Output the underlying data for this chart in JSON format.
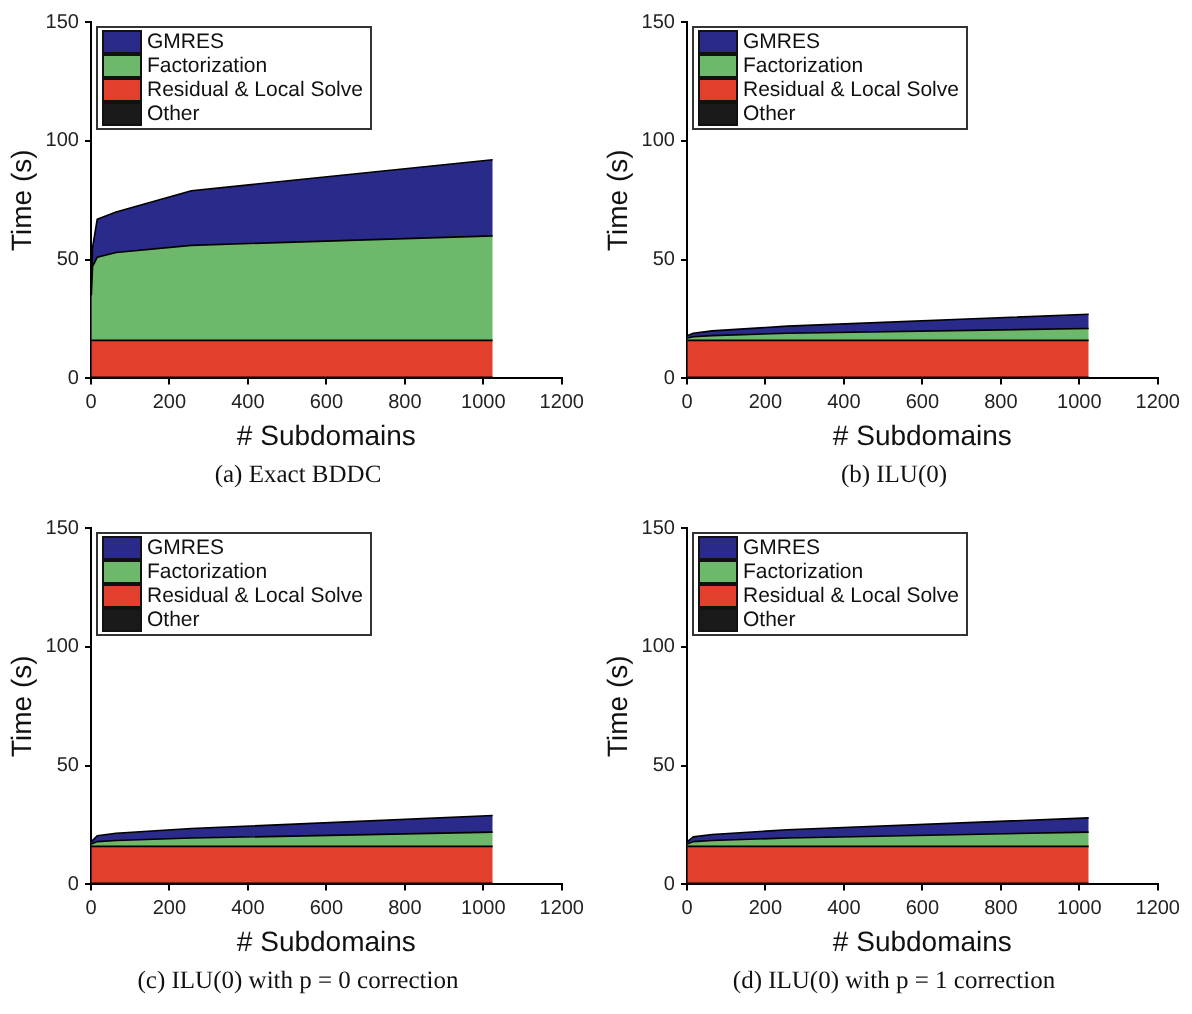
{
  "chart_data": [
    {
      "type": "area",
      "title": "(a) Exact BDDC",
      "xlabel": "# Subdomains",
      "ylabel": "Time (s)",
      "x": [
        1,
        4,
        16,
        64,
        256,
        1024
      ],
      "stacked": true,
      "xlim": [
        0,
        1200
      ],
      "xticks": [
        0,
        200,
        400,
        600,
        800,
        1000,
        1200
      ],
      "ylim": [
        0,
        150
      ],
      "yticks": [
        0,
        50,
        100,
        150
      ],
      "grid": false,
      "legend": "top left",
      "marker": "none",
      "series": [
        {
          "name": "Other",
          "color": "#1a1a1a",
          "values": [
            0.5,
            0.5,
            0.5,
            0.5,
            0.5,
            0.5
          ]
        },
        {
          "name": "Residual & Local Solve",
          "color": "#e0402c",
          "values": [
            15.5,
            15.5,
            15.5,
            15.5,
            15.5,
            15.5
          ]
        },
        {
          "name": "Factorization",
          "color": "#6db86a",
          "values": [
            19,
            31,
            35,
            37,
            40,
            44
          ]
        },
        {
          "name": "GMRES",
          "color": "#2a2a8a",
          "values": [
            1,
            8,
            16,
            17,
            23,
            32
          ]
        }
      ]
    },
    {
      "type": "area",
      "title": "(b) ILU(0)",
      "xlabel": "# Subdomains",
      "ylabel": "Time (s)",
      "x": [
        1,
        16,
        64,
        256,
        1024
      ],
      "stacked": true,
      "xlim": [
        0,
        1200
      ],
      "xticks": [
        0,
        200,
        400,
        600,
        800,
        1000,
        1200
      ],
      "ylim": [
        0,
        150
      ],
      "yticks": [
        0,
        50,
        100,
        150
      ],
      "grid": false,
      "legend": "top left",
      "marker": "none",
      "series": [
        {
          "name": "Other",
          "color": "#1a1a1a",
          "values": [
            0.5,
            0.5,
            0.5,
            0.5,
            0.5
          ]
        },
        {
          "name": "Residual & Local Solve",
          "color": "#e0402c",
          "values": [
            15.5,
            15.5,
            15.5,
            15.5,
            15.5
          ]
        },
        {
          "name": "Factorization",
          "color": "#6db86a",
          "values": [
            1,
            1.5,
            2,
            3,
            5
          ]
        },
        {
          "name": "GMRES",
          "color": "#2a2a8a",
          "values": [
            1,
            1.5,
            2,
            3,
            6
          ]
        }
      ]
    },
    {
      "type": "area",
      "title": "(c) ILU(0) with p = 0 correction",
      "xlabel": "# Subdomains",
      "ylabel": "Time (s)",
      "x": [
        1,
        16,
        64,
        256,
        1024
      ],
      "stacked": true,
      "xlim": [
        0,
        1200
      ],
      "xticks": [
        0,
        200,
        400,
        600,
        800,
        1000,
        1200
      ],
      "ylim": [
        0,
        150
      ],
      "yticks": [
        0,
        50,
        100,
        150
      ],
      "grid": false,
      "legend": "top left",
      "marker": "none",
      "series": [
        {
          "name": "Other",
          "color": "#1a1a1a",
          "values": [
            0.5,
            0.5,
            0.5,
            0.5,
            0.5
          ]
        },
        {
          "name": "Residual & Local Solve",
          "color": "#e0402c",
          "values": [
            15.5,
            15.5,
            15.5,
            15.5,
            15.5
          ]
        },
        {
          "name": "Factorization",
          "color": "#6db86a",
          "values": [
            1,
            2,
            2.5,
            3.5,
            6
          ]
        },
        {
          "name": "GMRES",
          "color": "#2a2a8a",
          "values": [
            1,
            2.5,
            3,
            4,
            7
          ]
        }
      ]
    },
    {
      "type": "area",
      "title": "(d) ILU(0) with p = 1 correction",
      "xlabel": "# Subdomains",
      "ylabel": "Time (s)",
      "x": [
        1,
        16,
        64,
        256,
        1024
      ],
      "stacked": true,
      "xlim": [
        0,
        1200
      ],
      "xticks": [
        0,
        200,
        400,
        600,
        800,
        1000,
        1200
      ],
      "ylim": [
        0,
        150
      ],
      "yticks": [
        0,
        50,
        100,
        150
      ],
      "grid": false,
      "legend": "top left",
      "marker": "none",
      "series": [
        {
          "name": "Other",
          "color": "#1a1a1a",
          "values": [
            0.5,
            0.5,
            0.5,
            0.5,
            0.5
          ]
        },
        {
          "name": "Residual & Local Solve",
          "color": "#e0402c",
          "values": [
            15.5,
            15.5,
            15.5,
            15.5,
            15.5
          ]
        },
        {
          "name": "Factorization",
          "color": "#6db86a",
          "values": [
            1,
            2,
            2.5,
            3.5,
            6
          ]
        },
        {
          "name": "GMRES",
          "color": "#2a2a8a",
          "values": [
            1,
            2,
            2.5,
            3.5,
            6
          ]
        }
      ]
    }
  ]
}
